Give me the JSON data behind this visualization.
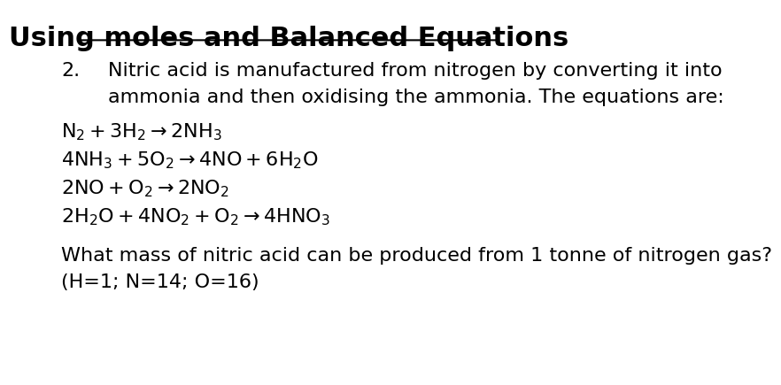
{
  "title": "Using moles and Balanced Equations",
  "background_color": "#ffffff",
  "text_color": "#000000",
  "title_fontsize": 22,
  "body_fontsize": 16,
  "font_family": "DejaVu Sans",
  "intro_number": "2.",
  "intro_line1": "Nitric acid is manufactured from nitrogen by converting it into",
  "intro_line2": "ammonia and then oxidising the ammonia. The equations are:",
  "question_line1": "What mass of nitric acid can be produced from 1 tonne of nitrogen gas?",
  "question_line2": "(H=1; N=14; O=16)"
}
